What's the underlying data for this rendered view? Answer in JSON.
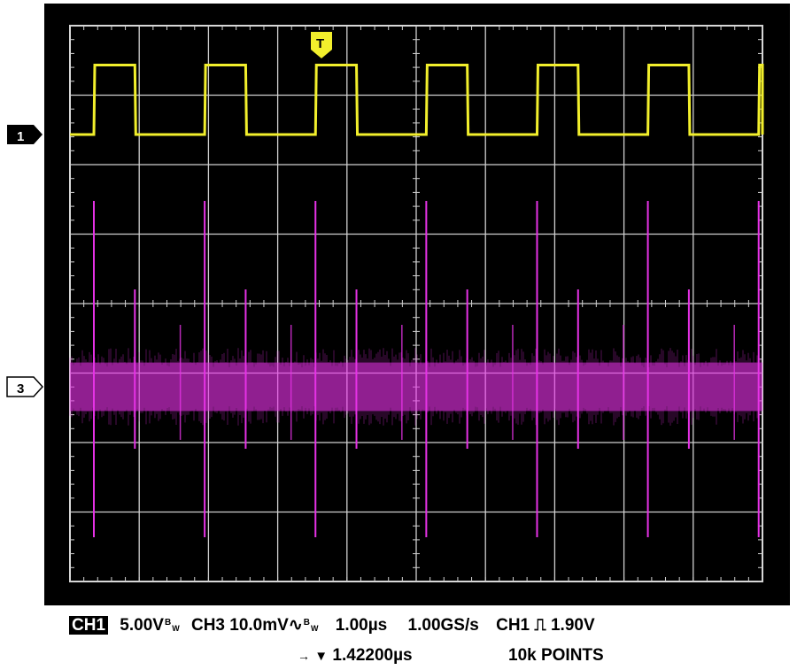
{
  "chart_data": {
    "type": "line",
    "title": "",
    "grid": true,
    "divisions": {
      "x": 10,
      "y": 8
    },
    "timebase_per_div_us": 1.0,
    "series": [
      {
        "name": "CH1",
        "color": "#f2ef2c",
        "marker_label": "1",
        "kind": "square-wave",
        "period_div": 1.6,
        "duty": 0.37,
        "amplitude_div": 1.0
      },
      {
        "name": "CH3",
        "color": "#e632e6",
        "marker_label": "3",
        "kind": "ripple-noise",
        "band_div": 0.8,
        "spike_period_div": 1.6
      }
    ],
    "trigger_marker": "T"
  },
  "readout": {
    "ch1_label": "CH1",
    "ch1_scale": "5.00V",
    "bw1": "B",
    "bw1b": "W",
    "ch3_label": "CH3",
    "ch3_scale": "10.0mV",
    "coupling_symbol": "∿",
    "bw3": "B",
    "bw3b": "W",
    "timebase": "1.00µs",
    "sample_rate": "1.00GS/s",
    "trig_source": "CH1",
    "trig_slope_symbol": "⎍",
    "trig_level": "1.90V",
    "position_arrow": "→",
    "position_marker": "▼",
    "trigger_position": "1.42200µs",
    "record_length": "10k POINTS"
  }
}
